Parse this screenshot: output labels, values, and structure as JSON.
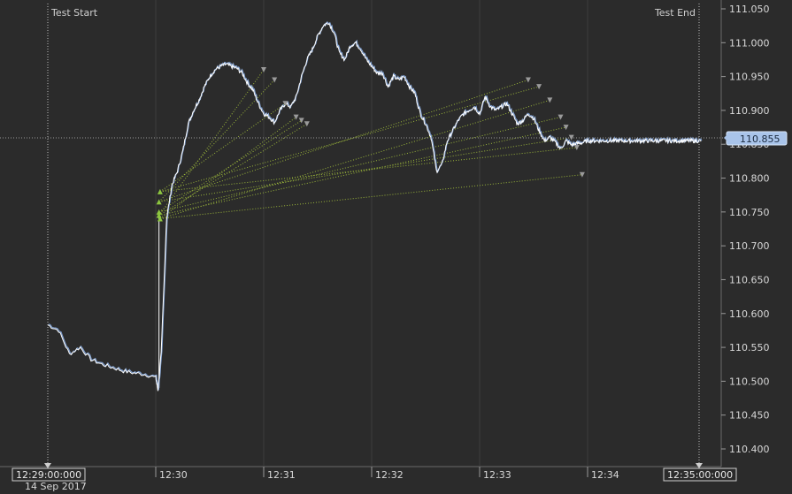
{
  "chart_data": {
    "type": "line",
    "title": "",
    "xlabel": "",
    "ylabel": "",
    "date_label": "14 Sep 2017",
    "ylim": [
      110.38,
      111.06
    ],
    "y_ticks": [
      "111.050",
      "111.000",
      "110.950",
      "110.900",
      "110.850",
      "110.800",
      "110.750",
      "110.700",
      "110.650",
      "110.600",
      "110.550",
      "110.500",
      "110.450",
      "110.400"
    ],
    "x_ticks": [
      "12:29:00:000",
      "12:30",
      "12:31",
      "12:32",
      "12:33",
      "12:34",
      "12:35:00:000"
    ],
    "current_price": "110.855",
    "markers": [
      {
        "name": "test-start",
        "label": "Test Start",
        "time": "12:29:00:000"
      },
      {
        "name": "test-end",
        "label": "Test End",
        "time": "12:35:00:000"
      }
    ],
    "colors": {
      "background": "#2b2b2b",
      "grid": "#555555",
      "price_line": "#ffffff",
      "price_shadow": "#7f9fd0",
      "trade_line": "#9ab53a",
      "entry_marker": "#8dc63f",
      "exit_marker": "#9a9a9a",
      "current_price_box": "#a9c4ea"
    },
    "series": [
      {
        "x_minutes": [
          0,
          0.1,
          0.2,
          0.3,
          0.4,
          0.5,
          0.6,
          0.7,
          0.8,
          0.9,
          1.0,
          1.02,
          1.05,
          1.1,
          1.15,
          1.2,
          1.25,
          1.3,
          1.35,
          1.4,
          1.45,
          1.5,
          1.55,
          1.6,
          1.65,
          1.7,
          1.75,
          1.8,
          1.85,
          1.9,
          1.95,
          2.0,
          2.05,
          2.1,
          2.15,
          2.2,
          2.25,
          2.3,
          2.35,
          2.4,
          2.45,
          2.5,
          2.55,
          2.6,
          2.65,
          2.7,
          2.75,
          2.8,
          2.85,
          2.9,
          2.95,
          3.0,
          3.05,
          3.1,
          3.15,
          3.2,
          3.25,
          3.3,
          3.35,
          3.4,
          3.45,
          3.5,
          3.55,
          3.6,
          3.65,
          3.7,
          3.75,
          3.8,
          3.85,
          3.9,
          3.95,
          4.0,
          4.05,
          4.1,
          4.15,
          4.2,
          4.25,
          4.3,
          4.35,
          4.4,
          4.45,
          4.5,
          4.55,
          4.6,
          4.65,
          4.7,
          4.75,
          4.8,
          4.85,
          4.9,
          4.95,
          5.0,
          5.05,
          5.1,
          5.15,
          5.2,
          5.25,
          5.3,
          5.35,
          5.4,
          5.45,
          5.5,
          5.55,
          5.6,
          5.65,
          5.7,
          5.75,
          5.8,
          5.85,
          5.9,
          5.95,
          6.0,
          6.05,
          6.1,
          6.15,
          6.2,
          6.25,
          6.3,
          6.35,
          6.4,
          6.45,
          6.5,
          6.55,
          6.6,
          6.65,
          6.7,
          6.75,
          6.8,
          6.85,
          6.9,
          6.95,
          7.0,
          7.05,
          7.1,
          7.15,
          7.2
        ],
        "values": [
          110.583,
          110.575,
          110.54,
          110.55,
          110.532,
          110.525,
          110.52,
          110.515,
          110.512,
          110.51,
          110.505,
          110.487,
          110.54,
          110.74,
          110.79,
          110.81,
          110.84,
          110.88,
          110.9,
          110.915,
          110.935,
          110.95,
          110.96,
          110.965,
          110.968,
          110.965,
          110.962,
          110.955,
          110.94,
          110.93,
          110.91,
          110.895,
          110.89,
          110.882,
          110.9,
          110.91,
          110.905,
          110.92,
          110.95,
          110.975,
          110.99,
          111.01,
          111.025,
          111.03,
          111.015,
          110.985,
          110.975,
          110.995,
          111.0,
          110.99,
          110.975,
          110.965,
          110.955,
          110.955,
          110.935,
          110.95,
          110.945,
          110.95,
          110.935,
          110.925,
          110.895,
          110.88,
          110.86,
          110.81,
          110.82,
          110.855,
          110.87,
          110.885,
          110.895,
          110.9,
          110.905,
          110.895,
          110.92,
          110.905,
          110.9,
          110.905,
          110.91,
          110.895,
          110.88,
          110.885,
          110.895,
          110.888,
          110.87,
          110.855,
          110.86,
          110.853,
          110.843,
          110.855,
          110.849,
          110.851,
          110.852,
          110.855,
          110.855,
          110.855,
          110.855,
          110.855,
          110.855,
          110.855,
          110.855,
          110.855,
          110.855,
          110.855,
          110.855,
          110.855,
          110.855,
          110.855,
          110.855,
          110.855,
          110.855,
          110.855,
          110.855,
          110.855,
          110.855,
          110.855,
          110.855,
          110.855,
          110.855,
          110.855,
          110.855,
          110.855,
          110.855,
          110.855,
          110.855,
          110.855,
          110.855,
          110.855,
          110.855,
          110.855,
          110.855,
          110.855,
          110.855,
          110.855,
          110.855,
          110.855,
          110.855,
          110.855
        ]
      }
    ]
  }
}
